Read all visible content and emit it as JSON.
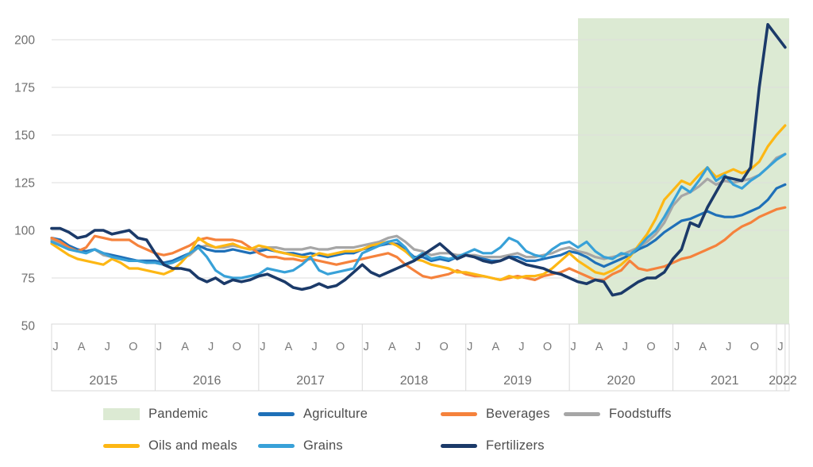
{
  "chart_data": {
    "type": "line",
    "title": "",
    "xlabel": "",
    "ylabel": "",
    "x_start": "2015-01",
    "x_end": "2022-02",
    "x_months_total": 86,
    "years": [
      "2015",
      "2016",
      "2017",
      "2018",
      "2019",
      "2020",
      "2021",
      "2022"
    ],
    "month_tick_pattern": [
      "J",
      "A",
      "J",
      "O"
    ],
    "y_ticks": [
      50,
      75,
      100,
      125,
      150,
      175,
      200
    ],
    "ylim": [
      50,
      212
    ],
    "grid": "horizontal",
    "legend_position": "bottom",
    "pandemic_band": {
      "label": "Pandemic",
      "start": "2020-02",
      "end": "2022-02",
      "color": "#dcead3"
    },
    "series": [
      {
        "name": "Agriculture",
        "color": "#1f70b8",
        "values": [
          96,
          95,
          92,
          90,
          89,
          90,
          88,
          87,
          86,
          85,
          84,
          84,
          84,
          83,
          84,
          86,
          88,
          92,
          90,
          89,
          89,
          90,
          89,
          88,
          89,
          90,
          89,
          88,
          88,
          87,
          88,
          87,
          86,
          87,
          88,
          88,
          90,
          91,
          92,
          93,
          93,
          90,
          86,
          86,
          84,
          85,
          84,
          86,
          87,
          86,
          85,
          84,
          84,
          86,
          86,
          84,
          84,
          85,
          86,
          87,
          89,
          88,
          86,
          83,
          81,
          83,
          85,
          87,
          90,
          92,
          95,
          99,
          102,
          105,
          106,
          108,
          110,
          108,
          107,
          107,
          108,
          110,
          112,
          116,
          122,
          124
        ]
      },
      {
        "name": "Beverages",
        "color": "#f5823c",
        "values": [
          96,
          94,
          91,
          89,
          91,
          97,
          96,
          95,
          95,
          95,
          92,
          90,
          88,
          87,
          88,
          90,
          92,
          95,
          96,
          95,
          95,
          95,
          94,
          91,
          88,
          86,
          86,
          85,
          85,
          84,
          85,
          84,
          83,
          82,
          83,
          84,
          85,
          86,
          87,
          88,
          86,
          82,
          79,
          76,
          75,
          76,
          77,
          79,
          77,
          76,
          76,
          75,
          74,
          75,
          76,
          75,
          74,
          76,
          77,
          78,
          80,
          78,
          76,
          74,
          74,
          77,
          79,
          84,
          80,
          79,
          80,
          81,
          83,
          85,
          86,
          88,
          90,
          92,
          95,
          99,
          102,
          104,
          107,
          109,
          111,
          112
        ]
      },
      {
        "name": "Foodstuffs",
        "color": "#a6a6a6",
        "values": [
          95,
          93,
          91,
          89,
          89,
          90,
          87,
          86,
          85,
          84,
          84,
          83,
          83,
          82,
          83,
          85,
          87,
          91,
          92,
          91,
          91,
          92,
          91,
          90,
          90,
          91,
          91,
          90,
          90,
          90,
          91,
          90,
          90,
          91,
          91,
          91,
          92,
          93,
          94,
          96,
          97,
          94,
          90,
          89,
          87,
          88,
          88,
          87,
          87,
          87,
          86,
          86,
          86,
          87,
          88,
          86,
          86,
          87,
          88,
          90,
          91,
          89,
          88,
          86,
          85,
          86,
          87,
          89,
          91,
          94,
          98,
          104,
          113,
          118,
          120,
          123,
          127,
          124,
          126,
          125,
          126,
          127,
          129,
          133,
          138,
          140
        ]
      },
      {
        "name": "Oils and meals",
        "color": "#fdb714",
        "values": [
          93,
          90,
          87,
          85,
          84,
          83,
          82,
          85,
          83,
          80,
          80,
          79,
          78,
          77,
          79,
          83,
          88,
          96,
          93,
          91,
          92,
          93,
          91,
          90,
          92,
          91,
          89,
          88,
          87,
          86,
          86,
          88,
          87,
          88,
          89,
          89,
          90,
          92,
          93,
          94,
          92,
          89,
          85,
          84,
          82,
          81,
          80,
          78,
          78,
          77,
          76,
          75,
          74,
          76,
          75,
          76,
          76,
          77,
          80,
          84,
          88,
          84,
          81,
          78,
          77,
          79,
          82,
          86,
          92,
          98,
          106,
          116,
          121,
          126,
          124,
          129,
          133,
          128,
          130,
          132,
          130,
          132,
          136,
          144,
          150,
          155
        ]
      },
      {
        "name": "Grains",
        "color": "#38a1d8",
        "values": [
          94,
          92,
          90,
          89,
          88,
          90,
          88,
          86,
          85,
          84,
          84,
          83,
          83,
          82,
          83,
          85,
          88,
          91,
          86,
          79,
          76,
          75,
          75,
          76,
          77,
          80,
          79,
          78,
          79,
          82,
          86,
          79,
          77,
          78,
          79,
          80,
          88,
          90,
          92,
          94,
          95,
          91,
          85,
          88,
          85,
          86,
          85,
          86,
          88,
          90,
          88,
          88,
          91,
          96,
          94,
          89,
          87,
          86,
          90,
          93,
          94,
          91,
          94,
          89,
          86,
          85,
          88,
          87,
          91,
          96,
          100,
          107,
          115,
          123,
          120,
          126,
          133,
          126,
          129,
          124,
          122,
          126,
          129,
          133,
          137,
          140
        ]
      },
      {
        "name": "Fertilizers",
        "color": "#1b3a69",
        "values": [
          101,
          101,
          99,
          96,
          97,
          100,
          100,
          98,
          99,
          100,
          96,
          95,
          88,
          82,
          80,
          80,
          79,
          75,
          73,
          75,
          72,
          74,
          73,
          74,
          76,
          77,
          75,
          73,
          70,
          69,
          70,
          72,
          70,
          71,
          74,
          78,
          82,
          78,
          76,
          78,
          80,
          82,
          84,
          87,
          90,
          93,
          89,
          85,
          87,
          86,
          84,
          83,
          84,
          86,
          84,
          82,
          81,
          80,
          78,
          77,
          75,
          73,
          72,
          74,
          73,
          66,
          67,
          70,
          73,
          75,
          75,
          78,
          85,
          90,
          104,
          102,
          112,
          120,
          128,
          127,
          126,
          133,
          175,
          208,
          202,
          196
        ]
      }
    ]
  },
  "legend": {
    "items": [
      {
        "label": "Pandemic",
        "type": "band",
        "color": "#dcead3",
        "row": 1,
        "col": 1
      },
      {
        "label": "Agriculture",
        "type": "line",
        "color": "#1f70b8",
        "row": 1,
        "col": 2
      },
      {
        "label": "Beverages",
        "type": "line",
        "color": "#f5823c",
        "row": 1,
        "col": 3
      },
      {
        "label": "Foodstuffs",
        "type": "line",
        "color": "#a6a6a6",
        "row": 1,
        "col": 4
      },
      {
        "label": "Oils and meals",
        "type": "line",
        "color": "#fdb714",
        "row": 2,
        "col": 1
      },
      {
        "label": "Grains",
        "type": "line",
        "color": "#38a1d8",
        "row": 2,
        "col": 2
      },
      {
        "label": "Fertilizers",
        "type": "line",
        "color": "#1b3a69",
        "row": 2,
        "col": 3
      }
    ]
  },
  "style": {
    "gridline_color": "#dedede",
    "axis_color": "#d9d9d9",
    "tick_text_color": "#6e6e6e",
    "month_text_color": "#7a7a7a"
  }
}
